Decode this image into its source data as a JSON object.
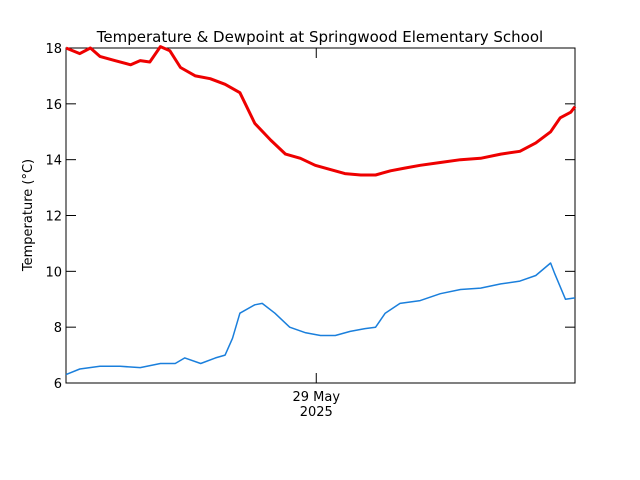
{
  "chart_data": {
    "type": "line",
    "title": "Temperature & Dewpoint at Springwood Elementary School",
    "y_label": "Temperature (°C)",
    "xlim": [
      -23.6,
      24.4
    ],
    "xticks": [
      {
        "value": 0,
        "label": [
          "29 May",
          "2025"
        ]
      }
    ],
    "ylim": [
      6,
      18
    ],
    "yticks": [
      6,
      8,
      10,
      12,
      14,
      16,
      18
    ],
    "series": [
      {
        "name": "Temperature",
        "color": "#ee0000",
        "x": [
          -23.6,
          -22.3,
          -21.3,
          -20.4,
          -19.0,
          -17.5,
          -16.6,
          -15.7,
          -14.7,
          -13.8,
          -12.8,
          -11.4,
          -10.0,
          -8.6,
          -7.2,
          -5.8,
          -4.3,
          -2.9,
          -1.5,
          -0.1,
          1.3,
          2.7,
          4.2,
          5.6,
          7.0,
          8.4,
          9.8,
          11.7,
          13.6,
          15.5,
          17.4,
          19.2,
          20.7,
          22.1,
          23.0,
          24.0,
          24.4
        ],
        "values": [
          18.0,
          17.8,
          18.0,
          17.7,
          17.55,
          17.4,
          17.55,
          17.5,
          18.05,
          17.9,
          17.3,
          17.0,
          16.9,
          16.7,
          16.4,
          15.3,
          14.7,
          14.2,
          14.05,
          13.8,
          13.65,
          13.5,
          13.45,
          13.45,
          13.6,
          13.7,
          13.8,
          13.9,
          14.0,
          14.05,
          14.2,
          14.3,
          14.6,
          15.0,
          15.5,
          15.7,
          15.9
        ]
      },
      {
        "name": "Dewpoint",
        "color": "#1a7fdc",
        "x": [
          -23.6,
          -22.3,
          -20.4,
          -18.5,
          -16.6,
          -14.7,
          -13.3,
          -12.4,
          -10.9,
          -9.5,
          -8.6,
          -7.9,
          -7.2,
          -5.8,
          -5.1,
          -3.9,
          -2.5,
          -1.0,
          0.4,
          1.8,
          3.2,
          4.6,
          5.6,
          6.5,
          7.9,
          9.8,
          11.7,
          13.6,
          15.5,
          17.4,
          19.2,
          20.7,
          22.1,
          22.5,
          23.5,
          24.4
        ],
        "values": [
          6.3,
          6.5,
          6.6,
          6.6,
          6.55,
          6.7,
          6.7,
          6.9,
          6.7,
          6.9,
          7.0,
          7.6,
          8.5,
          8.8,
          8.85,
          8.5,
          8.0,
          7.8,
          7.7,
          7.7,
          7.85,
          7.95,
          8.0,
          8.5,
          8.85,
          8.95,
          9.2,
          9.35,
          9.4,
          9.55,
          9.65,
          9.85,
          10.3,
          9.9,
          9.0,
          9.05
        ]
      }
    ]
  }
}
